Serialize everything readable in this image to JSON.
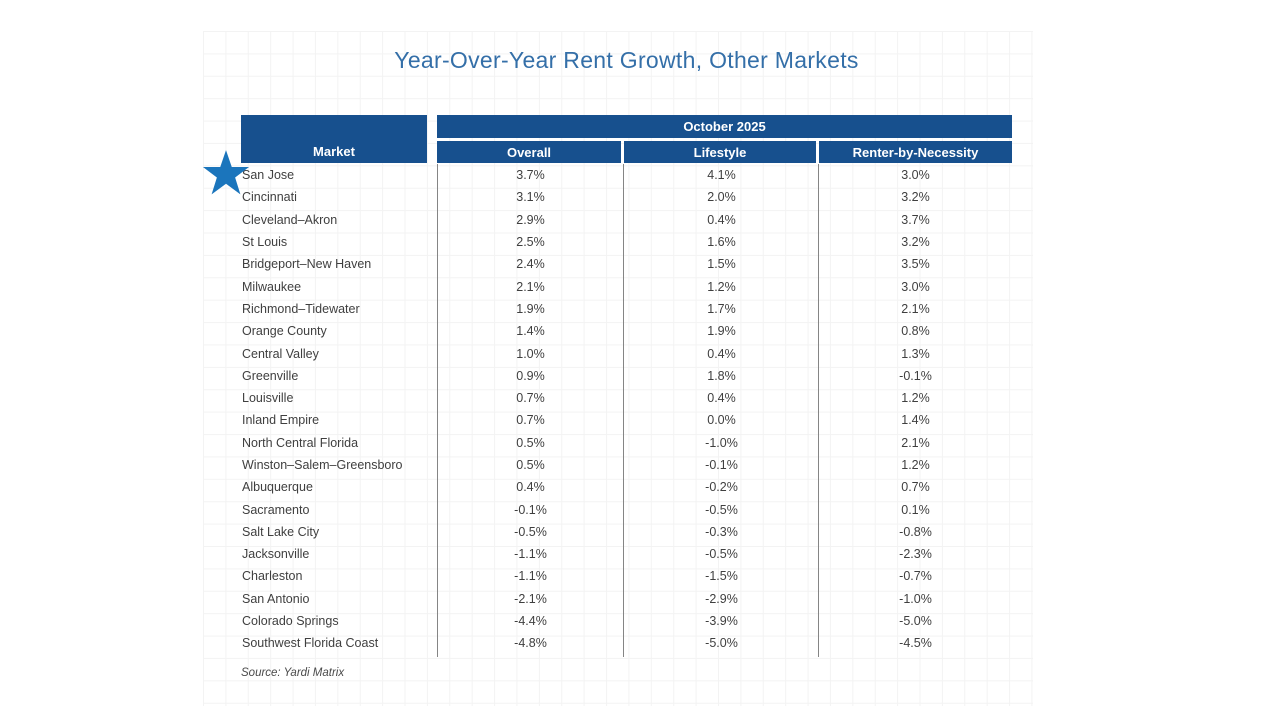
{
  "title": "Year-Over-Year Rent Growth, Other Markets",
  "source_note": "Source: Yardi Matrix",
  "table": {
    "period": "October 2025",
    "market_col": "Market",
    "value_cols": [
      "Overall",
      "Lifestyle",
      "Renter-by-Necessity"
    ]
  },
  "chart_data": {
    "type": "table",
    "title": "Year-Over-Year Rent Growth, Other Markets",
    "period": "October 2025",
    "columns": [
      "Market",
      "Overall",
      "Lifestyle",
      "Renter-by-Necessity"
    ],
    "rows": [
      [
        "San Jose",
        "3.7%",
        "4.1%",
        "3.0%"
      ],
      [
        "Cincinnati",
        "3.1%",
        "2.0%",
        "3.2%"
      ],
      [
        "Cleveland–Akron",
        "2.9%",
        "0.4%",
        "3.7%"
      ],
      [
        "St Louis",
        "2.5%",
        "1.6%",
        "3.2%"
      ],
      [
        "Bridgeport–New Haven",
        "2.4%",
        "1.5%",
        "3.5%"
      ],
      [
        "Milwaukee",
        "2.1%",
        "1.2%",
        "3.0%"
      ],
      [
        "Richmond–Tidewater",
        "1.9%",
        "1.7%",
        "2.1%"
      ],
      [
        "Orange County",
        "1.4%",
        "1.9%",
        "0.8%"
      ],
      [
        "Central Valley",
        "1.0%",
        "0.4%",
        "1.3%"
      ],
      [
        "Greenville",
        "0.9%",
        "1.8%",
        "-0.1%"
      ],
      [
        "Louisville",
        "0.7%",
        "0.4%",
        "1.2%"
      ],
      [
        "Inland Empire",
        "0.7%",
        "0.0%",
        "1.4%"
      ],
      [
        "North Central Florida",
        "0.5%",
        "-1.0%",
        "2.1%"
      ],
      [
        "Winston–Salem–Greensboro",
        "0.5%",
        "-0.1%",
        "1.2%"
      ],
      [
        "Albuquerque",
        "0.4%",
        "-0.2%",
        "0.7%"
      ],
      [
        "Sacramento",
        "-0.1%",
        "-0.5%",
        "0.1%"
      ],
      [
        "Salt Lake City",
        "-0.5%",
        "-0.3%",
        "-0.8%"
      ],
      [
        "Jacksonville",
        "-1.1%",
        "-0.5%",
        "-2.3%"
      ],
      [
        "Charleston",
        "-1.1%",
        "-1.5%",
        "-0.7%"
      ],
      [
        "San Antonio",
        "-2.1%",
        "-2.9%",
        "-1.0%"
      ],
      [
        "Colorado Springs",
        "-4.4%",
        "-3.9%",
        "-5.0%"
      ],
      [
        "Southwest Florida Coast",
        "-4.8%",
        "-5.0%",
        "-4.5%"
      ]
    ],
    "source": "Yardi Matrix",
    "annotations": [
      "blue five-point star marker at the San Jose row"
    ],
    "legend_position": "none",
    "grid": "faint spreadsheet gridlines behind chart"
  },
  "colors": {
    "header_bg": "#17508E",
    "title_text": "#346FA8",
    "body_text": "#3F3F3F",
    "star": "#1B75BC",
    "grid_line": "#F3F3F3",
    "column_separator": "#858585"
  }
}
